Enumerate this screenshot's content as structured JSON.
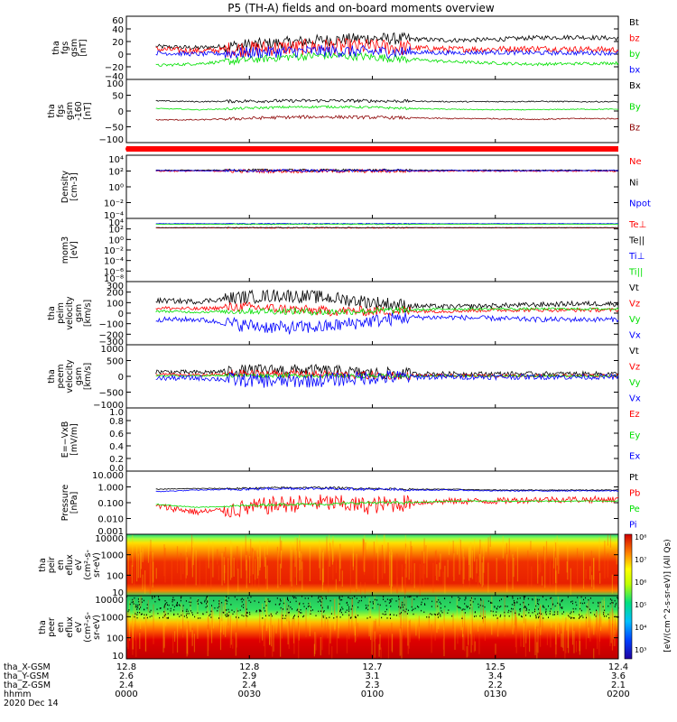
{
  "title": "P5 (TH-A) fields and on-board moments overview",
  "colors": {
    "black": "#000000",
    "red": "#ff0000",
    "green": "#00e000",
    "blue": "#0000ff",
    "darkred": "#8b0000"
  },
  "chart_data": [
    {
      "type": "line",
      "id": "fgs_gsm",
      "ylabel_lines": [
        "tha",
        "fgs",
        "gsm",
        "[nT]"
      ],
      "yticks": [
        "60",
        "40",
        "20",
        "0",
        "−20",
        "−40"
      ],
      "ylim": [
        -40,
        60
      ],
      "series": [
        {
          "name": "Bt",
          "color": "black",
          "base": [
            12,
            10,
            14,
            18,
            22,
            25,
            24,
            22,
            23,
            26,
            27,
            25
          ],
          "noise": 6
        },
        {
          "name": "bz",
          "color": "red",
          "base": [
            8,
            5,
            8,
            10,
            12,
            12,
            10,
            8,
            8,
            9,
            8,
            7
          ],
          "noise": 8
        },
        {
          "name": "by",
          "color": "green",
          "base": [
            -18,
            -15,
            -10,
            -5,
            -2,
            -4,
            -8,
            -12,
            -14,
            -16,
            -15,
            -14
          ],
          "noise": 4
        },
        {
          "name": "bx",
          "color": "blue",
          "base": [
            2,
            0,
            2,
            4,
            5,
            4,
            3,
            2,
            3,
            2,
            2,
            2
          ],
          "noise": 6
        }
      ]
    },
    {
      "type": "line",
      "id": "fgs_gsm_160",
      "ylabel_lines": [
        "tha",
        "fgs",
        "gsm",
        "-160",
        "[nT]"
      ],
      "yticks": [
        "100",
        "50",
        "0",
        "−50",
        "−100"
      ],
      "ylim": [
        -150,
        100
      ],
      "series": [
        {
          "name": "Bx",
          "color": "black",
          "base": [
            15,
            12,
            14,
            15,
            16,
            15,
            14,
            12,
            12,
            13,
            12,
            12
          ],
          "noise": 4
        },
        {
          "name": "By",
          "color": "green",
          "base": [
            -15,
            -20,
            -15,
            -10,
            -8,
            -10,
            -15,
            -18,
            -20,
            -20,
            -18,
            -18
          ],
          "noise": 3
        },
        {
          "name": "Bz",
          "color": "darkred",
          "base": [
            -60,
            -60,
            -55,
            -50,
            -48,
            -50,
            -52,
            -55,
            -55,
            -58,
            -55,
            -55
          ],
          "noise": 4
        }
      ]
    },
    {
      "type": "line",
      "id": "density",
      "ylabel_lines": [
        "Density",
        "[cm-3]"
      ],
      "yticks": [
        "10⁴",
        "10²",
        "10⁰",
        "10⁻²",
        "10⁻⁴"
      ],
      "ylim": [
        -4,
        4
      ],
      "log": true,
      "series": [
        {
          "name": "Ne",
          "color": "red",
          "base": [
            2,
            2,
            2,
            2,
            2,
            2,
            2,
            2,
            2,
            2,
            2,
            2
          ],
          "noise": 0.15
        },
        {
          "name": "Ni",
          "color": "black",
          "base": [
            2.1,
            2.1,
            2.1,
            2.1,
            2.1,
            2.1,
            2.1,
            2.1,
            2.1,
            2.1,
            2.1,
            2.1
          ],
          "noise": 0.1
        },
        {
          "name": "Npot",
          "color": "blue",
          "base": [
            2.05,
            2.05,
            2.05,
            2.05,
            2.05,
            2.05,
            2.05,
            2.05,
            2.05,
            2.05,
            2.05,
            2.05
          ],
          "noise": 0.1
        }
      ]
    },
    {
      "type": "line",
      "id": "temp",
      "ylabel_lines": [
        "mom3",
        "[eV]"
      ],
      "yticks": [
        "10⁴",
        "10²",
        "10⁰",
        "10⁻²",
        "10⁻⁴",
        "10⁻⁶",
        "10⁻⁸"
      ],
      "ylim": [
        -8,
        4
      ],
      "log": true,
      "series": [
        {
          "name": "Te⊥",
          "color": "red",
          "base": [
            2.2,
            2.2,
            2.2,
            2.2,
            2.2,
            2.2,
            2.2,
            2.2,
            2.2,
            2.2,
            2.2,
            2.2
          ],
          "noise": 0.05
        },
        {
          "name": "Te||",
          "color": "black",
          "base": [
            2.25,
            2.25,
            2.25,
            2.25,
            2.25,
            2.25,
            2.25,
            2.25,
            2.25,
            2.25,
            2.25,
            2.25
          ],
          "noise": 0.05
        },
        {
          "name": "Ti⊥",
          "color": "blue",
          "base": [
            3,
            3,
            3,
            3,
            3,
            3,
            3,
            3,
            3,
            3,
            3,
            3
          ],
          "noise": 0.05
        },
        {
          "name": "Ti||",
          "color": "green",
          "base": [
            2.9,
            2.9,
            2.9,
            2.9,
            2.9,
            2.9,
            2.9,
            2.9,
            2.9,
            2.9,
            2.9,
            2.9
          ],
          "noise": 0.05
        }
      ]
    },
    {
      "type": "line",
      "id": "peim",
      "ylabel_lines": [
        "tha",
        "peim",
        "velocity",
        "gsm",
        "[km/s]"
      ],
      "yticks": [
        "300",
        "200",
        "100",
        "0",
        "−100",
        "−200",
        "−300"
      ],
      "ylim": [
        -300,
        300
      ],
      "series": [
        {
          "name": "Vt",
          "color": "black",
          "base": [
            120,
            110,
            150,
            170,
            150,
            110,
            70,
            60,
            70,
            80,
            90,
            90
          ],
          "noise": 40
        },
        {
          "name": "Vz",
          "color": "red",
          "base": [
            50,
            40,
            60,
            40,
            20,
            20,
            20,
            20,
            30,
            30,
            30,
            30
          ],
          "noise": 30
        },
        {
          "name": "Vy",
          "color": "green",
          "base": [
            20,
            10,
            20,
            20,
            10,
            20,
            30,
            40,
            40,
            40,
            40,
            40
          ],
          "noise": 20
        },
        {
          "name": "Vx",
          "color": "blue",
          "base": [
            -60,
            -60,
            -110,
            -140,
            -130,
            -80,
            -40,
            -40,
            -50,
            -60,
            -60,
            -60
          ],
          "noise": 40
        }
      ]
    },
    {
      "type": "line",
      "id": "peem",
      "ylabel_lines": [
        "tha",
        "peem",
        "velocity",
        "gsm",
        "[km/s]"
      ],
      "yticks": [
        "1000",
        "500",
        "0",
        "−500",
        "−1000"
      ],
      "ylim": [
        -1000,
        1000
      ],
      "series": [
        {
          "name": "Vt",
          "color": "black",
          "base": [
            150,
            120,
            180,
            200,
            180,
            100,
            80,
            80,
            80,
            80,
            80,
            80
          ],
          "noise": 120
        },
        {
          "name": "Vz",
          "color": "red",
          "base": [
            60,
            40,
            80,
            80,
            60,
            30,
            20,
            20,
            20,
            20,
            20,
            20
          ],
          "noise": 80
        },
        {
          "name": "Vy",
          "color": "green",
          "base": [
            20,
            20,
            30,
            30,
            20,
            10,
            10,
            10,
            10,
            10,
            10,
            10
          ],
          "noise": 40
        },
        {
          "name": "Vx",
          "color": "blue",
          "base": [
            -60,
            -50,
            -120,
            -160,
            -120,
            -40,
            -20,
            -20,
            -20,
            -20,
            -20,
            -20
          ],
          "noise": 140
        }
      ]
    },
    {
      "type": "line",
      "id": "efield",
      "ylabel_lines": [
        "E=−VxB",
        "[mV/m]"
      ],
      "yticks": [
        "1.0",
        "0.8",
        "0.6",
        "0.4",
        "0.2",
        "0.0"
      ],
      "ylim": [
        0,
        1
      ],
      "series": [
        {
          "name": "Ez",
          "color": "red",
          "base": [],
          "noise": 0
        },
        {
          "name": "Ey",
          "color": "green",
          "base": [],
          "noise": 0
        },
        {
          "name": "Ex",
          "color": "blue",
          "base": [],
          "noise": 0
        }
      ]
    },
    {
      "type": "line",
      "id": "pressure",
      "ylabel_lines": [
        "Pressure",
        "[nPa]"
      ],
      "yticks": [
        "10.000",
        "1.000",
        "0.100",
        "0.010",
        "0.001"
      ],
      "ylim": [
        -3,
        1
      ],
      "log": true,
      "series": [
        {
          "name": "Pt",
          "color": "black",
          "base": [
            -0.15,
            -0.1,
            -0.1,
            -0.05,
            -0.05,
            -0.1,
            -0.15,
            -0.15,
            -0.2,
            -0.2,
            -0.2,
            -0.2
          ],
          "noise": 0.04
        },
        {
          "name": "Pb",
          "color": "red",
          "base": [
            -1.2,
            -1.6,
            -1.4,
            -1.1,
            -1.0,
            -1.2,
            -1.0,
            -0.9,
            -0.9,
            -0.8,
            -0.8,
            -0.8
          ],
          "noise": 0.35
        },
        {
          "name": "Pe",
          "color": "green",
          "base": [
            -1.1,
            -1.3,
            -1.2,
            -1.1,
            -1.1,
            -1.0,
            -1.0,
            -0.9,
            -0.9,
            -0.9,
            -0.9,
            -0.9
          ],
          "noise": 0.05
        },
        {
          "name": "Pi",
          "color": "blue",
          "base": [
            -0.3,
            -0.2,
            -0.15,
            -0.1,
            -0.1,
            -0.15,
            -0.2,
            -0.2,
            -0.25,
            -0.25,
            -0.25,
            -0.25
          ],
          "noise": 0.05
        }
      ]
    },
    {
      "type": "heatmap",
      "id": "peir",
      "ylabel_lines": [
        "tha",
        "peir",
        "en",
        "eflux",
        "eV",
        "(cm²-s-",
        "sr-eV)"
      ],
      "yticks": [
        "10000",
        "1000",
        "100",
        "10"
      ],
      "ylim": [
        1,
        4.2
      ],
      "log": true
    },
    {
      "type": "heatmap",
      "id": "peer",
      "ylabel_lines": [
        "tha",
        "peer",
        "en",
        "eflux",
        "eV",
        "(cm²-s-",
        "sr-eV)"
      ],
      "yticks": [
        "10000",
        "1000",
        "100",
        "10"
      ],
      "ylim": [
        1,
        4.2
      ],
      "log": true
    }
  ],
  "colorbar": {
    "label": "[eV/(cm^2-s-sr-eV)] (All Qs)",
    "ticks": [
      "10⁸",
      "10⁷",
      "10⁶",
      "10⁵",
      "10⁴",
      "10³"
    ]
  },
  "xaxis": {
    "rows": [
      {
        "label": "tha_X-GSM",
        "values": [
          "12.8",
          "12.8",
          "12.7",
          "12.5",
          "12.4"
        ]
      },
      {
        "label": "tha_Y-GSM",
        "values": [
          "2.6",
          "2.9",
          "3.1",
          "3.4",
          "3.6"
        ]
      },
      {
        "label": "tha_Z-GSM",
        "values": [
          "2.4",
          "2.4",
          "2.3",
          "2.2",
          "2.1"
        ]
      },
      {
        "label": "hhmm",
        "values": [
          "0000",
          "0030",
          "0100",
          "0130",
          "0200"
        ]
      }
    ],
    "date": "2020 Dec 14"
  }
}
